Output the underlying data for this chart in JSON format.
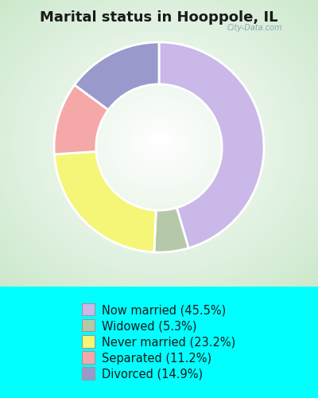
{
  "title": "Marital status in Hooppole, IL",
  "title_fontsize": 13,
  "background_color": "#00FFFF",
  "chart_bg_color": "#cce8cc",
  "slices": [
    {
      "label": "Now married (45.5%)",
      "value": 45.5,
      "color": "#c9b8e8"
    },
    {
      "label": "Widowed (5.3%)",
      "value": 5.3,
      "color": "#b5c9a8"
    },
    {
      "label": "Never married (23.2%)",
      "value": 23.2,
      "color": "#f5f578"
    },
    {
      "label": "Separated (11.2%)",
      "value": 11.2,
      "color": "#f5a8a8"
    },
    {
      "label": "Divorced (14.9%)",
      "value": 14.9,
      "color": "#9999cc"
    }
  ],
  "legend_fontsize": 10.5,
  "watermark": "City-Data.com",
  "startangle": 90
}
